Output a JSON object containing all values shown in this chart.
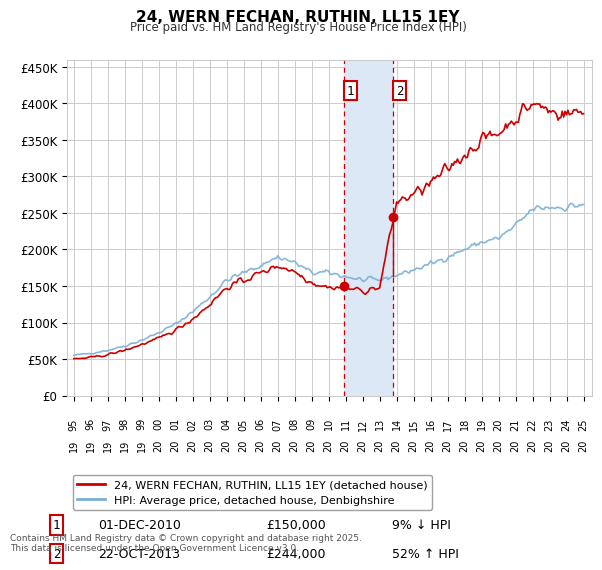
{
  "title": "24, WERN FECHAN, RUTHIN, LL15 1EY",
  "subtitle": "Price paid vs. HM Land Registry's House Price Index (HPI)",
  "hpi_color": "#7bafd4",
  "price_color": "#cc0000",
  "shaded_color": "#dce8f5",
  "dashed_color": "#cc0000",
  "background_color": "#ffffff",
  "grid_color": "#cccccc",
  "legend_label_price": "24, WERN FECHAN, RUTHIN, LL15 1EY (detached house)",
  "legend_label_hpi": "HPI: Average price, detached house, Denbighshire",
  "transaction1_date": "01-DEC-2010",
  "transaction1_price": 150000,
  "transaction1_pct": "9% ↓ HPI",
  "transaction2_date": "22-OCT-2013",
  "transaction2_price": 244000,
  "transaction2_pct": "52% ↑ HPI",
  "footer": "Contains HM Land Registry data © Crown copyright and database right 2025.\nThis data is licensed under the Open Government Licence v3.0.",
  "ylim": [
    0,
    460000
  ],
  "yticks": [
    0,
    50000,
    100000,
    150000,
    200000,
    250000,
    300000,
    350000,
    400000,
    450000
  ],
  "ytick_labels": [
    "£0",
    "£50K",
    "£100K",
    "£150K",
    "£200K",
    "£250K",
    "£300K",
    "£350K",
    "£400K",
    "£450K"
  ],
  "transaction1_x": 2010.92,
  "transaction2_x": 2013.8
}
